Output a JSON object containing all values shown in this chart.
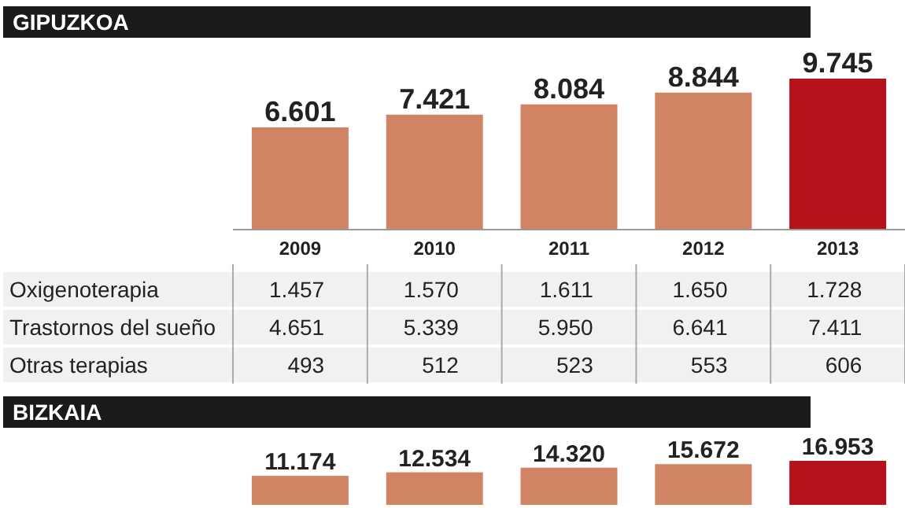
{
  "chart_data": [
    {
      "type": "bar",
      "title": "GIPUZKOA",
      "categories": [
        "2009",
        "2010",
        "2011",
        "2012",
        "2013"
      ],
      "values": [
        6601,
        7421,
        8084,
        8844,
        9745
      ],
      "value_labels": [
        "6.601",
        "7.421",
        "8.084",
        "8.844",
        "9.745"
      ],
      "colors": [
        "#d08463",
        "#d08463",
        "#d08463",
        "#d08463",
        "#b5121b"
      ]
    },
    {
      "type": "other",
      "categories": [
        "Oxigenoterapia",
        "Trastornos del sueño",
        "Otras terapias"
      ],
      "annotations": [
        "1.457",
        "1.570",
        "1.611",
        "1.650",
        "1.728",
        "4.651",
        "5.339",
        "5.950",
        "6.641",
        "7.411",
        "493",
        "512",
        "523",
        "553",
        "606"
      ]
    },
    {
      "type": "bar",
      "title": "BIZKAIA",
      "categories": [
        null,
        null,
        null,
        null,
        null
      ],
      "values": [
        11174,
        12534,
        14320,
        15672,
        16953
      ],
      "value_labels": [
        "11.174",
        "12.534",
        "14.320",
        "15.672",
        "16.953"
      ],
      "colors": [
        "#d08463",
        "#d08463",
        "#d08463",
        "#d08463",
        "#b5121b"
      ]
    }
  ]
}
